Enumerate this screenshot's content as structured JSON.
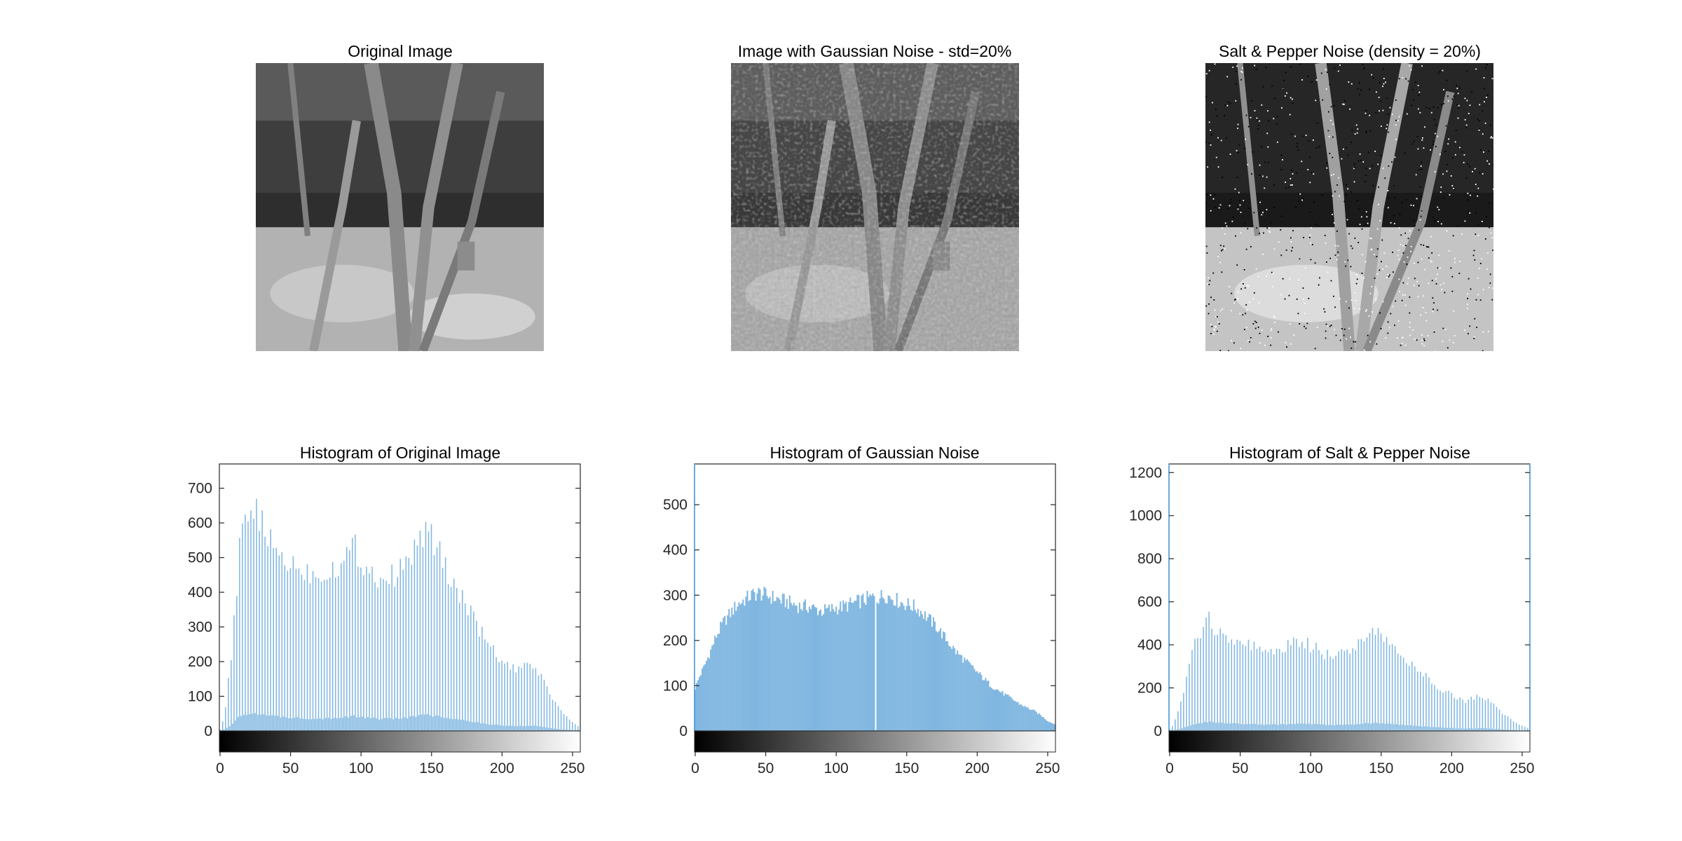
{
  "figure": {
    "images": [
      {
        "title": "Original Image",
        "image_icon": "grayscale-tree-photo-icon"
      },
      {
        "title": "Image with Gaussian Noise - std=20%",
        "image_icon": "grayscale-tree-photo-gaussian-noise-icon"
      },
      {
        "title": "Salt & Pepper Noise (density = 20%)",
        "image_icon": "grayscale-tree-photo-salt-pepper-icon"
      }
    ]
  },
  "colors": {
    "bar": "#7fb6e0",
    "axis": "#262626",
    "noise_axis": "#4a9be0"
  },
  "chart_data": [
    {
      "type": "bar",
      "title": "Histogram of Original Image",
      "xlabel": "",
      "ylabel": "",
      "xlim": [
        0,
        255
      ],
      "ylim": [
        0,
        770
      ],
      "xticks": [
        0,
        50,
        100,
        150,
        200,
        250
      ],
      "yticks": [
        0,
        100,
        200,
        300,
        400,
        500,
        600,
        700
      ],
      "colorbar": "grayscale 0-255",
      "series": [
        {
          "anchors": [
            [
              0,
              5
            ],
            [
              2,
              30
            ],
            [
              4,
              70
            ],
            [
              6,
              150
            ],
            [
              8,
              210
            ],
            [
              10,
              310
            ],
            [
              12,
              410
            ],
            [
              14,
              530
            ],
            [
              16,
              560
            ],
            [
              18,
              610
            ],
            [
              20,
              580
            ],
            [
              22,
              620
            ],
            [
              24,
              650
            ],
            [
              26,
              670
            ],
            [
              28,
              610
            ],
            [
              30,
              590
            ],
            [
              32,
              580
            ],
            [
              34,
              560
            ],
            [
              36,
              540
            ],
            [
              40,
              520
            ],
            [
              44,
              500
            ],
            [
              48,
              490
            ],
            [
              52,
              480
            ],
            [
              56,
              470
            ],
            [
              60,
              460
            ],
            [
              65,
              455
            ],
            [
              70,
              450
            ],
            [
              75,
              460
            ],
            [
              80,
              470
            ],
            [
              85,
              480
            ],
            [
              90,
              505
            ],
            [
              95,
              540
            ],
            [
              100,
              490
            ],
            [
              105,
              470
            ],
            [
              110,
              450
            ],
            [
              115,
              440
            ],
            [
              120,
              440
            ],
            [
              125,
              455
            ],
            [
              130,
              470
            ],
            [
              135,
              500
            ],
            [
              140,
              540
            ],
            [
              145,
              575
            ],
            [
              150,
              560
            ],
            [
              155,
              520
            ],
            [
              160,
              470
            ],
            [
              165,
              430
            ],
            [
              170,
              400
            ],
            [
              175,
              360
            ],
            [
              180,
              320
            ],
            [
              185,
              290
            ],
            [
              190,
              250
            ],
            [
              195,
              225
            ],
            [
              200,
              200
            ],
            [
              205,
              185
            ],
            [
              210,
              175
            ],
            [
              215,
              180
            ],
            [
              220,
              190
            ],
            [
              225,
              180
            ],
            [
              230,
              140
            ],
            [
              235,
              100
            ],
            [
              240,
              70
            ],
            [
              245,
              45
            ],
            [
              250,
              25
            ],
            [
              255,
              10
            ]
          ]
        }
      ]
    },
    {
      "type": "bar",
      "title": "Histogram of Gaussian Noise",
      "xlabel": "",
      "ylabel": "",
      "xlim": [
        0,
        255
      ],
      "ylim": [
        0,
        590
      ],
      "xticks": [
        0,
        50,
        100,
        150,
        200,
        250
      ],
      "yticks": [
        0,
        100,
        200,
        300,
        400,
        500
      ],
      "colorbar": "grayscale 0-255",
      "series": [
        {
          "anchors": [
            [
              0,
              95
            ],
            [
              3,
              120
            ],
            [
              6,
              140
            ],
            [
              10,
              170
            ],
            [
              15,
              210
            ],
            [
              20,
              240
            ],
            [
              25,
              260
            ],
            [
              30,
              280
            ],
            [
              35,
              290
            ],
            [
              40,
              300
            ],
            [
              45,
              305
            ],
            [
              50,
              300
            ],
            [
              55,
              295
            ],
            [
              60,
              290
            ],
            [
              65,
              285
            ],
            [
              70,
              280
            ],
            [
              75,
              275
            ],
            [
              80,
              275
            ],
            [
              85,
              270
            ],
            [
              90,
              265
            ],
            [
              95,
              268
            ],
            [
              100,
              272
            ],
            [
              105,
              275
            ],
            [
              110,
              280
            ],
            [
              115,
              285
            ],
            [
              120,
              290
            ],
            [
              125,
              295
            ],
            [
              127,
              295
            ],
            [
              128,
              2
            ],
            [
              129,
              295
            ],
            [
              135,
              300
            ],
            [
              140,
              295
            ],
            [
              145,
              285
            ],
            [
              150,
              280
            ],
            [
              155,
              275
            ],
            [
              160,
              265
            ],
            [
              165,
              250
            ],
            [
              170,
              235
            ],
            [
              175,
              215
            ],
            [
              180,
              195
            ],
            [
              185,
              175
            ],
            [
              190,
              160
            ],
            [
              195,
              145
            ],
            [
              200,
              130
            ],
            [
              205,
              115
            ],
            [
              210,
              100
            ],
            [
              215,
              90
            ],
            [
              220,
              80
            ],
            [
              225,
              70
            ],
            [
              230,
              60
            ],
            [
              235,
              52
            ],
            [
              240,
              45
            ],
            [
              245,
              35
            ],
            [
              250,
              22
            ],
            [
              255,
              15
            ]
          ]
        }
      ]
    },
    {
      "type": "bar",
      "title": "Histogram of Salt & Pepper Noise",
      "xlabel": "",
      "ylabel": "",
      "xlim": [
        0,
        255
      ],
      "ylim": [
        0,
        1240
      ],
      "xticks": [
        0,
        50,
        100,
        150,
        200,
        250
      ],
      "yticks": [
        0,
        200,
        400,
        600,
        800,
        1000,
        1200
      ],
      "colorbar": "grayscale 0-255",
      "series": [
        {
          "anchors": [
            [
              0,
              10
            ],
            [
              3,
              30
            ],
            [
              6,
              90
            ],
            [
              10,
              180
            ],
            [
              14,
              300
            ],
            [
              18,
              400
            ],
            [
              22,
              460
            ],
            [
              26,
              520
            ],
            [
              28,
              550
            ],
            [
              32,
              480
            ],
            [
              36,
              460
            ],
            [
              40,
              450
            ],
            [
              45,
              420
            ],
            [
              50,
              410
            ],
            [
              55,
              400
            ],
            [
              60,
              390
            ],
            [
              65,
              370
            ],
            [
              70,
              360
            ],
            [
              75,
              370
            ],
            [
              80,
              380
            ],
            [
              85,
              395
            ],
            [
              90,
              410
            ],
            [
              95,
              420
            ],
            [
              100,
              395
            ],
            [
              105,
              375
            ],
            [
              110,
              360
            ],
            [
              115,
              355
            ],
            [
              120,
              360
            ],
            [
              125,
              370
            ],
            [
              130,
              390
            ],
            [
              135,
              420
            ],
            [
              140,
              450
            ],
            [
              145,
              470
            ],
            [
              150,
              450
            ],
            [
              155,
              410
            ],
            [
              160,
              380
            ],
            [
              165,
              350
            ],
            [
              170,
              320
            ],
            [
              175,
              290
            ],
            [
              180,
              260
            ],
            [
              185,
              235
            ],
            [
              190,
              210
            ],
            [
              195,
              190
            ],
            [
              200,
              170
            ],
            [
              205,
              150
            ],
            [
              210,
              140
            ],
            [
              215,
              150
            ],
            [
              220,
              160
            ],
            [
              225,
              150
            ],
            [
              230,
              120
            ],
            [
              235,
              90
            ],
            [
              240,
              65
            ],
            [
              245,
              40
            ],
            [
              250,
              25
            ],
            [
              255,
              10
            ]
          ]
        }
      ]
    }
  ]
}
